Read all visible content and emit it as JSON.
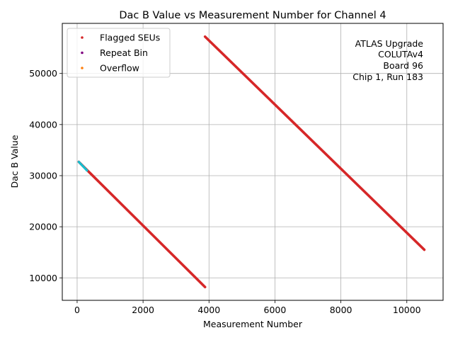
{
  "chart_data": {
    "type": "scatter",
    "title": "Dac B Value vs Measurement Number for Channel 4",
    "xlabel": "Measurement Number",
    "ylabel": "Dac B Value",
    "xlim": [
      -450,
      11100
    ],
    "ylim": [
      5600,
      59800
    ],
    "xticks": [
      0,
      2000,
      4000,
      6000,
      8000,
      10000
    ],
    "yticks": [
      10000,
      20000,
      30000,
      40000,
      50000
    ],
    "grid": true,
    "legend_position": "top-left",
    "annotation_position": "top-right",
    "annotation_lines": [
      "ATLAS Upgrade",
      "COLUTAv4",
      "Board 96",
      "Chip 1, Run 183"
    ],
    "series": [
      {
        "name": "Data",
        "color": "#17becf",
        "in_legend": false,
        "segments": [
          {
            "x": [
              50,
              300
            ],
            "y": [
              32700,
              31000
            ]
          }
        ]
      },
      {
        "name": "Flagged SEUs",
        "color": "#d62728",
        "in_legend": true,
        "segments": [
          {
            "x": [
              50,
              3880
            ],
            "y": [
              32700,
              8200
            ]
          },
          {
            "x": [
              3880,
              10530
            ],
            "y": [
              57200,
              15500
            ]
          }
        ]
      },
      {
        "name": "Repeat Bin",
        "color": "#800080",
        "in_legend": true,
        "segments": []
      },
      {
        "name": "Overflow",
        "color": "#ff7f0e",
        "in_legend": true,
        "segments": []
      }
    ]
  }
}
